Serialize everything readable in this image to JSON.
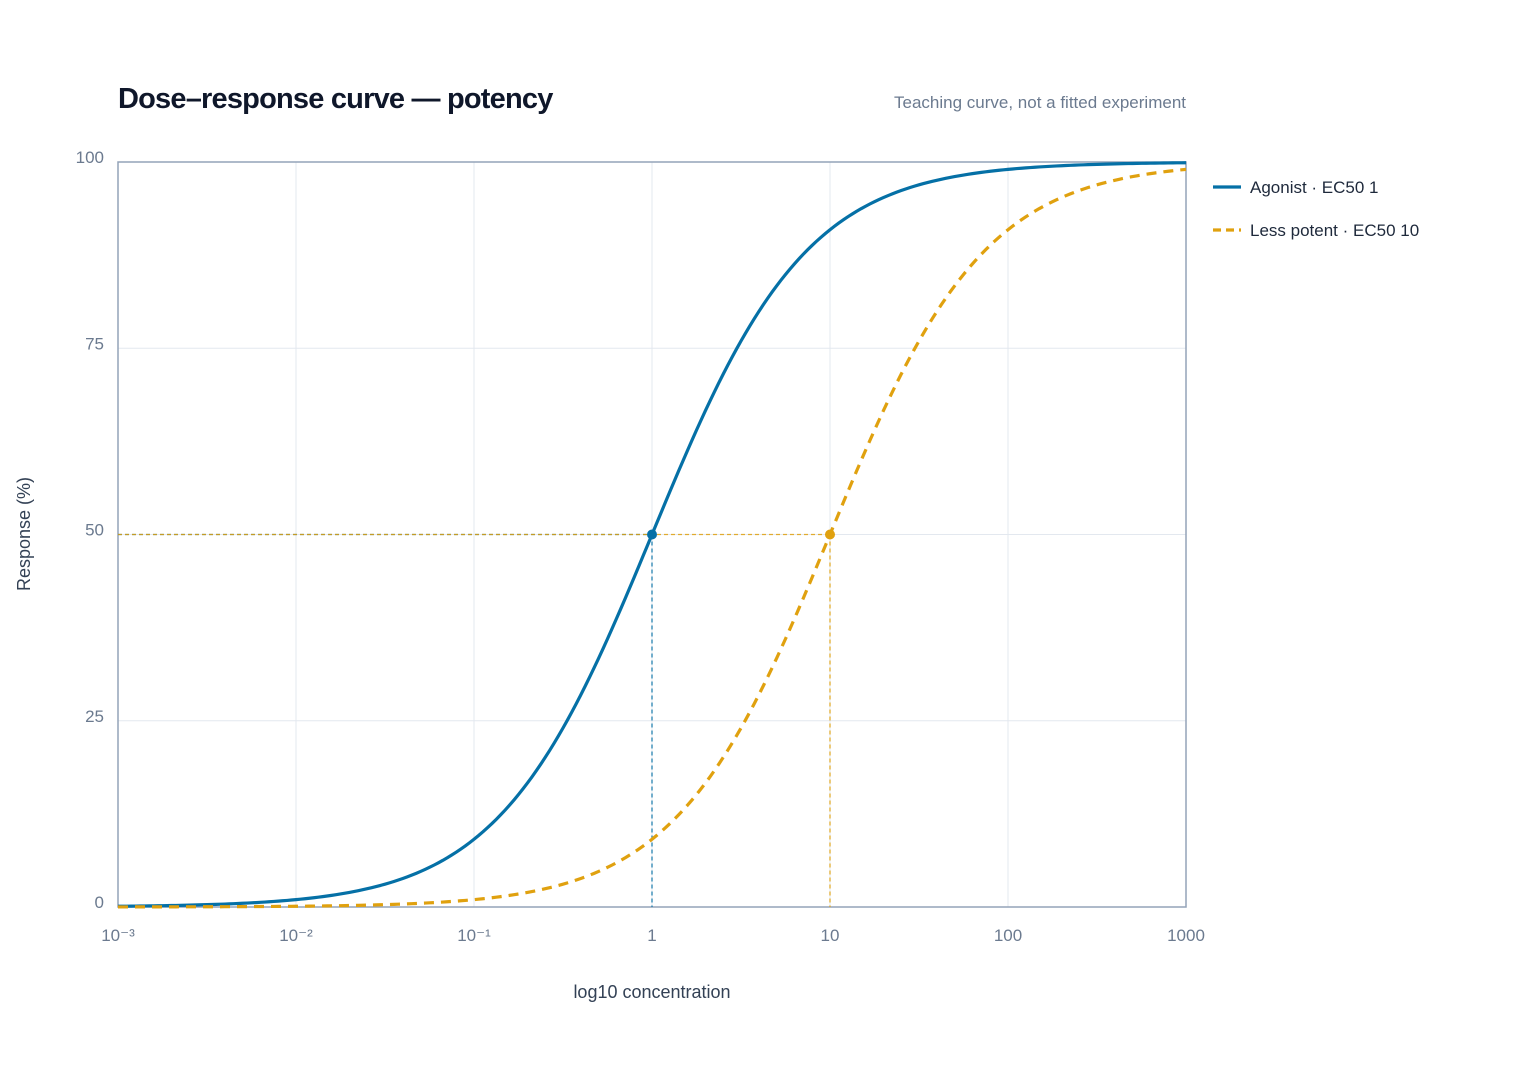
{
  "chart_data": {
    "type": "line",
    "title": "Dose–response curve — potency",
    "subtitle": "Teaching curve, not a fitted experiment",
    "xlabel": "log10 concentration",
    "ylabel": "Response (%)",
    "x_scale": "log",
    "xlim": [
      0.001,
      1000
    ],
    "ylim": [
      0,
      100
    ],
    "x_ticks": [
      {
        "value": 0.001,
        "label": "10⁻³"
      },
      {
        "value": 0.01,
        "label": "10⁻²"
      },
      {
        "value": 0.1,
        "label": "10⁻¹"
      },
      {
        "value": 1,
        "label": "1"
      },
      {
        "value": 10,
        "label": "10"
      },
      {
        "value": 100,
        "label": "100"
      },
      {
        "value": 1000,
        "label": "1000"
      }
    ],
    "y_ticks": [
      {
        "value": 0,
        "label": "0"
      },
      {
        "value": 25,
        "label": "25"
      },
      {
        "value": 50,
        "label": "50"
      },
      {
        "value": 75,
        "label": "75"
      },
      {
        "value": 100,
        "label": "100"
      }
    ],
    "grid": true,
    "legend_position": "right",
    "series": [
      {
        "name": "Agonist · EC50 1",
        "ec50": 1,
        "hill": 1,
        "color": "#0570a6",
        "dash": "solid",
        "x": [
          0.001,
          0.01,
          0.03,
          0.1,
          0.3,
          1,
          3,
          10,
          30,
          100,
          1000
        ],
        "y": [
          0.1,
          1.0,
          2.9,
          9.1,
          23.1,
          50.0,
          75.0,
          90.9,
          96.8,
          99.0,
          99.9
        ]
      },
      {
        "name": "Less potent · EC50 10",
        "ec50": 10,
        "hill": 1,
        "color": "#e0a10f",
        "dash": "dashed",
        "x": [
          0.001,
          0.01,
          0.1,
          0.3,
          1,
          3,
          10,
          30,
          100,
          300,
          1000
        ],
        "y": [
          0.0,
          0.1,
          1.0,
          2.9,
          9.1,
          23.1,
          50.0,
          75.0,
          90.9,
          96.8,
          99.0
        ]
      }
    ],
    "annotations": [
      {
        "series": 0,
        "x": 1,
        "y": 50,
        "guide_color": "#0570a6"
      },
      {
        "series": 1,
        "x": 10,
        "y": 50,
        "guide_color": "#e0a10f"
      }
    ]
  }
}
